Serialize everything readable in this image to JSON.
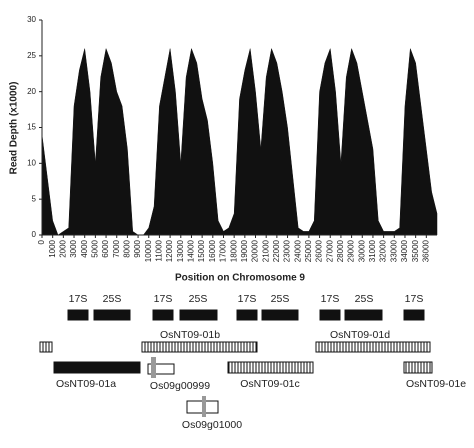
{
  "chart_data": {
    "type": "area",
    "x_label": "Position on Chromosome 9",
    "y_label": "Read Depth (x1000)",
    "color": "#111111",
    "x": [
      0,
      500,
      1000,
      1500,
      2000,
      2500,
      3000,
      3500,
      4000,
      4500,
      5000,
      5500,
      6000,
      6500,
      7000,
      7500,
      8000,
      8500,
      9000,
      9500,
      10000,
      10500,
      11000,
      11500,
      12000,
      12500,
      13000,
      13500,
      14000,
      14500,
      15000,
      15500,
      16000,
      16500,
      17000,
      17500,
      18000,
      18500,
      19000,
      19500,
      20000,
      20500,
      21000,
      21500,
      22000,
      22500,
      23000,
      23500,
      24000,
      24500,
      25000,
      25500,
      26000,
      26500,
      27000,
      27500,
      28000,
      28500,
      29000,
      29500,
      30000,
      30500,
      31000,
      31500,
      32000,
      32500,
      33000,
      33500,
      34000,
      34500,
      35000,
      35500,
      36000,
      36500,
      37000
    ],
    "values": [
      14,
      8,
      2,
      0,
      0.5,
      1,
      18,
      23,
      26,
      20,
      10,
      22,
      26,
      24,
      20,
      18,
      12,
      0.5,
      0,
      0,
      1,
      4,
      18,
      22,
      26,
      20,
      10,
      22,
      26,
      24,
      19,
      16,
      10,
      2,
      0.5,
      1,
      3,
      19,
      23,
      26,
      20,
      12,
      22,
      26,
      24,
      20,
      15,
      8,
      1,
      0.5,
      0.5,
      2,
      20,
      24,
      26,
      20,
      10,
      22,
      26,
      24,
      20,
      16,
      12,
      2,
      0.5,
      0.5,
      0.5,
      1,
      18,
      26,
      24,
      18,
      12,
      6,
      3
    ],
    "xlim": [
      0,
      37000
    ],
    "ylim": [
      0,
      30
    ],
    "xticks": [
      0,
      1000,
      2000,
      3000,
      4000,
      5000,
      6000,
      7000,
      8000,
      9000,
      10000,
      11000,
      12000,
      13000,
      14000,
      15000,
      16000,
      17000,
      18000,
      19000,
      20000,
      21000,
      22000,
      23000,
      24000,
      25000,
      26000,
      27000,
      28000,
      29000,
      30000,
      31000,
      32000,
      33000,
      34000,
      35000,
      36000
    ],
    "yticks": [
      0,
      5,
      10,
      15,
      20,
      25,
      30
    ]
  },
  "diagram": {
    "rrna_labels": [
      "17S",
      "25S",
      "17S",
      "25S",
      "17S",
      "25S",
      "17S",
      "25S",
      "17S"
    ],
    "genes": [
      "OsNT09-01b",
      "OsNT09-01d",
      "OsNT09-01a",
      "Os09g00999",
      "OsNT09-01c",
      "OsNT09-01e",
      "Os09g01000"
    ]
  }
}
